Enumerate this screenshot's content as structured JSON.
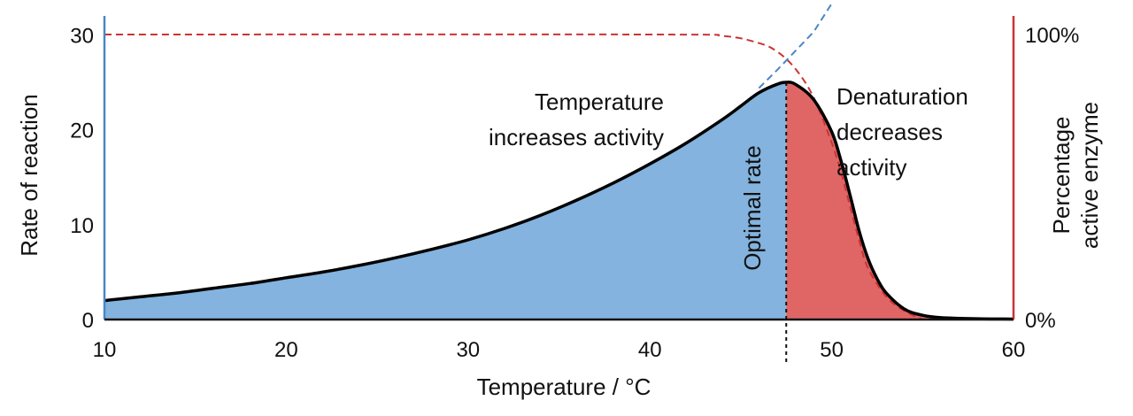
{
  "chart_data": {
    "type": "area",
    "title": "",
    "xlabel": "Temperature / °C",
    "ylabel": "Rate of reaction",
    "y2label": [
      "Percentage",
      "active enzyme"
    ],
    "xlim": [
      10,
      60
    ],
    "ylim": [
      0,
      32
    ],
    "y2lim": [
      0,
      100
    ],
    "x_ticks": [
      10,
      20,
      30,
      40,
      50,
      60
    ],
    "y_ticks": [
      0,
      10,
      20,
      30
    ],
    "y2_ticks": [
      {
        "value": 0,
        "label": "0%"
      },
      {
        "value": 100,
        "label": "100%"
      }
    ],
    "optimum_x": 47.5,
    "series": [
      {
        "role": "rate-curve",
        "x": [
          10,
          12,
          14,
          16,
          18,
          20,
          22,
          24,
          26,
          28,
          30,
          32,
          34,
          36,
          38,
          40,
          42,
          44,
          45,
          46,
          47,
          47.5,
          48,
          49,
          50,
          50.5,
          51,
          51.5,
          52,
          52.5,
          53,
          54,
          55,
          56,
          58,
          60
        ],
        "y": [
          2.0,
          2.4,
          2.8,
          3.3,
          3.8,
          4.4,
          5.0,
          5.7,
          6.5,
          7.4,
          8.4,
          9.6,
          11.0,
          12.6,
          14.4,
          16.4,
          18.6,
          21.1,
          22.5,
          23.9,
          24.8,
          25.0,
          24.8,
          23.2,
          19.8,
          16.8,
          13.2,
          9.4,
          6.4,
          4.3,
          2.8,
          1.1,
          0.45,
          0.2,
          0.08,
          0.05
        ]
      },
      {
        "role": "active-enzyme-percent",
        "x": [
          10,
          40,
          44,
          46,
          47,
          48,
          49,
          50,
          50.5,
          51,
          51.5,
          52,
          53,
          54,
          55
        ],
        "y": [
          100,
          100,
          99.5,
          97,
          94,
          88,
          78,
          62,
          52,
          40,
          28,
          18,
          8,
          3,
          0
        ]
      },
      {
        "role": "unlimited-rate-trend",
        "x": [
          46,
          47,
          48,
          49,
          50
        ],
        "y": [
          24.4,
          26.3,
          28.3,
          30.3,
          33.3
        ]
      }
    ],
    "fills": {
      "rising": "#83b3de",
      "falling": "#e06666"
    },
    "colors": {
      "left_axis": "#4a86c5",
      "right_axis": "#cc3333",
      "curve": "#000000",
      "enzyme_line": "#cc3333",
      "trend_line": "#4a86c5"
    },
    "annotations": [
      {
        "lines": [
          "Temperature",
          "increases activity"
        ],
        "x": 46.5,
        "y": 24.5
      },
      {
        "lines": [
          "Denaturation",
          "decreases",
          "activity"
        ],
        "x": 48.2,
        "y": 25.4
      },
      {
        "lines": [
          "Optimal rate"
        ],
        "x": 47.1,
        "y": 3
      }
    ]
  }
}
